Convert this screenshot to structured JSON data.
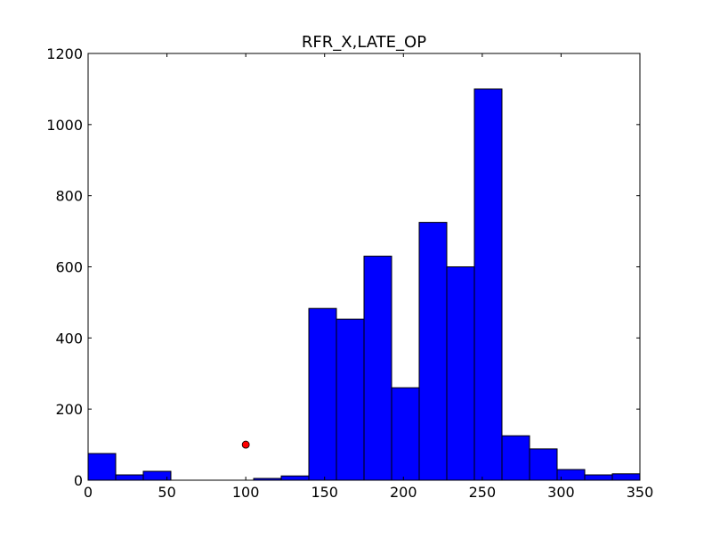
{
  "chart_data": {
    "type": "bar",
    "title": "RFR_X,LATE_OP",
    "xlabel": "",
    "ylabel": "",
    "xlim": [
      0,
      350
    ],
    "ylim": [
      0,
      1200
    ],
    "x_ticks": [
      "0",
      "50",
      "100",
      "150",
      "200",
      "250",
      "300",
      "350"
    ],
    "y_ticks": [
      "0",
      "200",
      "400",
      "600",
      "800",
      "1000",
      "1200"
    ],
    "bar_color": "#0000ff",
    "bin_edges": [
      0,
      17.5,
      35,
      52.5,
      70,
      87.5,
      105,
      122.5,
      140,
      157.5,
      175,
      192.5,
      210,
      227.5,
      245,
      262.5,
      280,
      297.5,
      315,
      332.5,
      350
    ],
    "values": [
      75,
      15,
      25,
      0,
      0,
      0,
      5,
      12,
      483,
      453,
      630,
      260,
      725,
      600,
      1100,
      125,
      88,
      30,
      15,
      18
    ],
    "marker": {
      "x": 100,
      "y": 100,
      "color": "#ff0000"
    },
    "grid": false,
    "legend": "none"
  }
}
